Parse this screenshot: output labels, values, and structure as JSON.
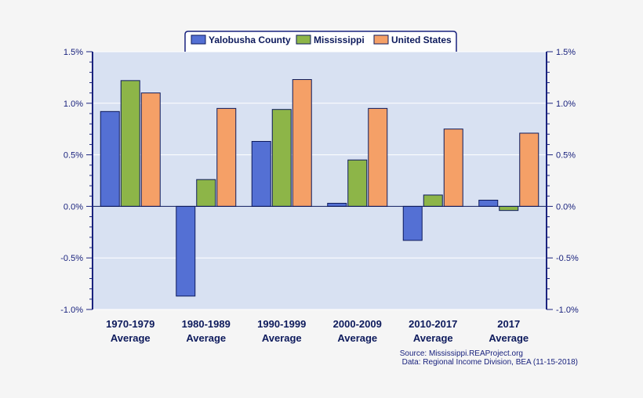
{
  "chart_data": {
    "type": "bar",
    "categories": [
      "1970-1979 Average",
      "1980-1989 Average",
      "1990-1999 Average",
      "2000-2009 Average",
      "2010-2017 Average",
      "2017 Average"
    ],
    "category_lines": [
      [
        "1970-1979",
        "Average"
      ],
      [
        "1980-1989",
        "Average"
      ],
      [
        "1990-1999",
        "Average"
      ],
      [
        "2000-2009",
        "Average"
      ],
      [
        "2010-2017",
        "Average"
      ],
      [
        "2017",
        "Average"
      ]
    ],
    "series": [
      {
        "name": "Yalobusha County",
        "color": "#5470d4",
        "values": [
          0.92,
          -0.87,
          0.63,
          0.03,
          -0.33,
          0.06
        ]
      },
      {
        "name": "Mississippi",
        "color": "#8db548",
        "values": [
          1.22,
          0.26,
          0.94,
          0.45,
          0.11,
          -0.04
        ]
      },
      {
        "name": "United States",
        "color": "#f5a067",
        "values": [
          1.1,
          0.95,
          1.23,
          0.95,
          0.75,
          0.71
        ]
      }
    ],
    "ylim": [
      -1.0,
      1.5
    ],
    "y_ticks": [
      1.5,
      1.0,
      0.5,
      0.0,
      -0.5,
      -1.0
    ],
    "y_tick_labels": [
      "1.5%",
      "1.0%",
      "0.5%",
      "0.0%",
      "-0.5%",
      "-1.0%"
    ],
    "legend_position": "top-center",
    "source": "Source: Mississippi.REAProject.org",
    "data_credit": "Data: Regional Income Division, BEA (11-15-2018)"
  },
  "colors": {
    "plot_background": "#d8e1f2",
    "axis": "#1a237e",
    "bar_outline": "#0d1a5c"
  }
}
